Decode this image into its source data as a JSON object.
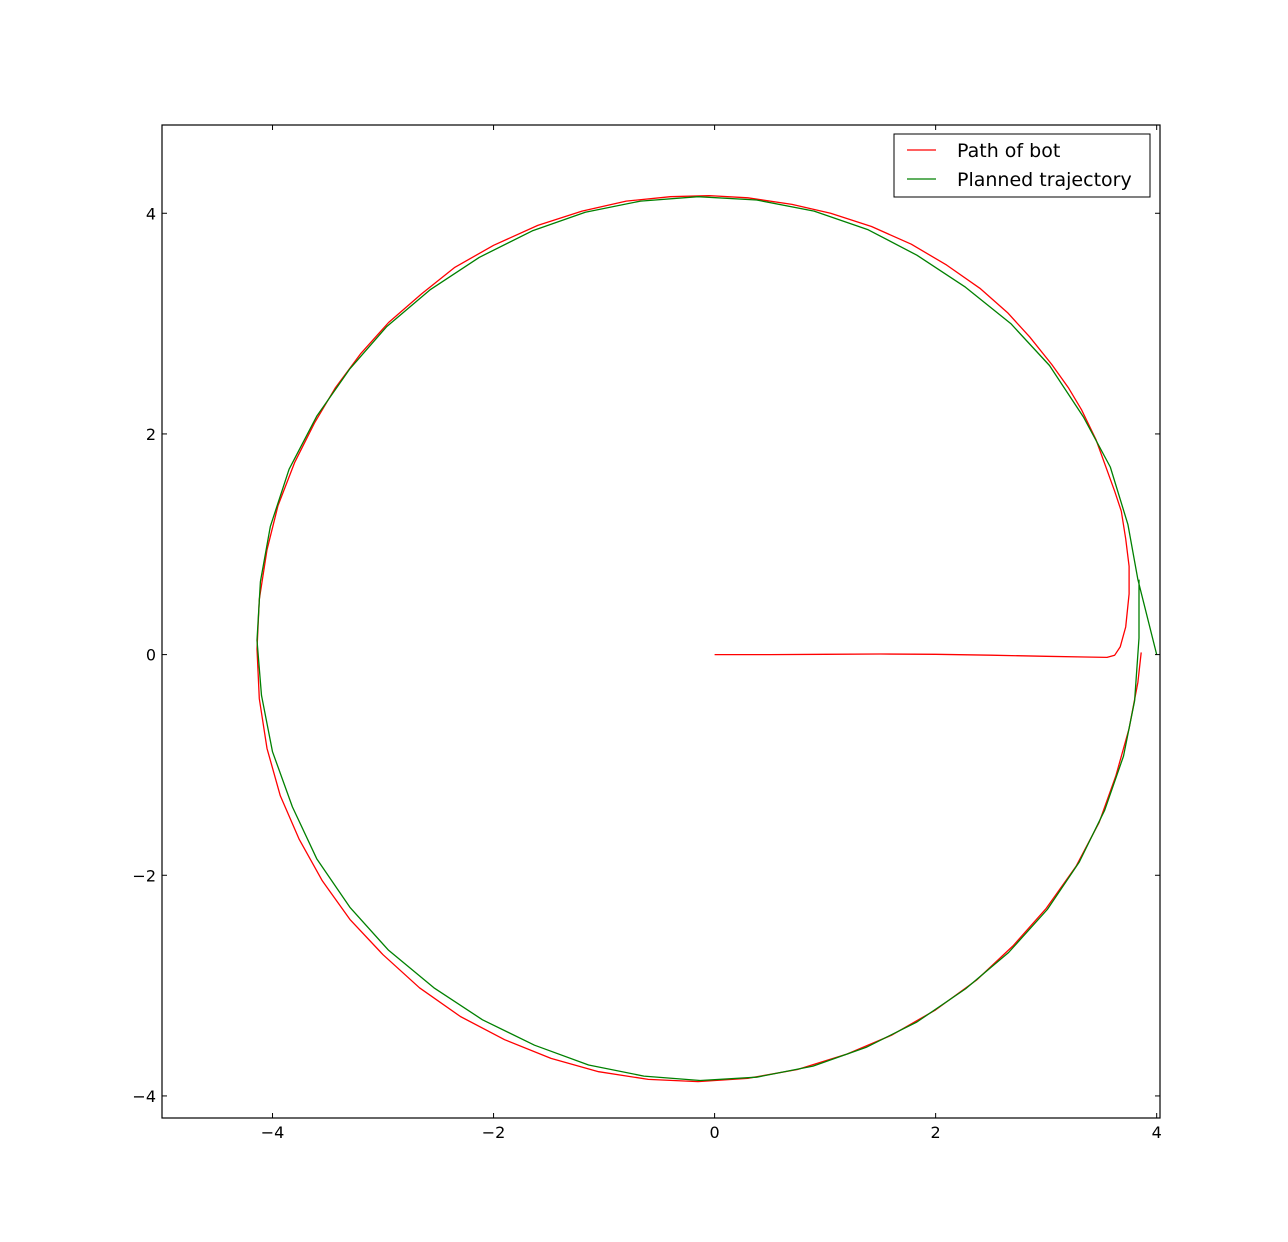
{
  "chart_data": {
    "type": "line",
    "title": "",
    "xlabel": "",
    "ylabel": "",
    "xlim": [
      -5.0,
      4.03
    ],
    "ylim": [
      -4.2,
      4.8
    ],
    "grid": false,
    "legend_position": "top-right",
    "x_ticks": [
      {
        "value": -4,
        "label": "−4"
      },
      {
        "value": -2,
        "label": "−2"
      },
      {
        "value": 0,
        "label": "0"
      },
      {
        "value": 2,
        "label": "2"
      },
      {
        "value": 4,
        "label": "4"
      }
    ],
    "y_ticks": [
      {
        "value": -4,
        "label": "−4"
      },
      {
        "value": -2,
        "label": "−2"
      },
      {
        "value": 0,
        "label": "0"
      },
      {
        "value": 2,
        "label": "2"
      },
      {
        "value": 4,
        "label": "4"
      }
    ],
    "series": [
      {
        "name": "Path of bot",
        "color": "#ff0000",
        "points": [
          [
            0.0,
            0.0
          ],
          [
            0.5,
            0.0
          ],
          [
            1.0,
            0.003
          ],
          [
            1.5,
            0.005
          ],
          [
            2.0,
            0.003
          ],
          [
            2.5,
            -0.005
          ],
          [
            3.0,
            -0.015
          ],
          [
            3.35,
            -0.022
          ],
          [
            3.55,
            -0.025
          ],
          [
            3.62,
            -0.005
          ],
          [
            3.67,
            0.07
          ],
          [
            3.72,
            0.25
          ],
          [
            3.75,
            0.55
          ],
          [
            3.75,
            0.8
          ],
          [
            3.72,
            1.05
          ],
          [
            3.68,
            1.3
          ],
          [
            3.62,
            1.48
          ],
          [
            3.45,
            1.95
          ],
          [
            3.32,
            2.22
          ],
          [
            3.2,
            2.42
          ],
          [
            3.05,
            2.63
          ],
          [
            2.85,
            2.88
          ],
          [
            2.65,
            3.1
          ],
          [
            2.4,
            3.32
          ],
          [
            2.1,
            3.53
          ],
          [
            1.78,
            3.72
          ],
          [
            1.42,
            3.88
          ],
          [
            1.05,
            4.0
          ],
          [
            0.7,
            4.08
          ],
          [
            0.3,
            4.14
          ],
          [
            -0.05,
            4.16
          ],
          [
            -0.4,
            4.15
          ],
          [
            -0.8,
            4.11
          ],
          [
            -1.2,
            4.02
          ],
          [
            -1.6,
            3.89
          ],
          [
            -2.0,
            3.71
          ],
          [
            -2.35,
            3.51
          ],
          [
            -2.65,
            3.27
          ],
          [
            -2.95,
            3.01
          ],
          [
            -3.2,
            2.73
          ],
          [
            -3.43,
            2.42
          ],
          [
            -3.62,
            2.1
          ],
          [
            -3.8,
            1.74
          ],
          [
            -3.95,
            1.35
          ],
          [
            -4.05,
            0.95
          ],
          [
            -4.12,
            0.5
          ],
          [
            -4.14,
            0.05
          ],
          [
            -4.12,
            -0.4
          ],
          [
            -4.05,
            -0.85
          ],
          [
            -3.93,
            -1.28
          ],
          [
            -3.76,
            -1.67
          ],
          [
            -3.55,
            -2.05
          ],
          [
            -3.3,
            -2.4
          ],
          [
            -3.0,
            -2.72
          ],
          [
            -2.67,
            -3.02
          ],
          [
            -2.3,
            -3.28
          ],
          [
            -1.9,
            -3.49
          ],
          [
            -1.48,
            -3.66
          ],
          [
            -1.05,
            -3.78
          ],
          [
            -0.6,
            -3.85
          ],
          [
            -0.15,
            -3.87
          ],
          [
            0.3,
            -3.84
          ],
          [
            0.75,
            -3.76
          ],
          [
            1.2,
            -3.62
          ],
          [
            1.6,
            -3.45
          ],
          [
            2.0,
            -3.22
          ],
          [
            2.37,
            -2.95
          ],
          [
            2.7,
            -2.64
          ],
          [
            3.0,
            -2.3
          ],
          [
            3.27,
            -1.92
          ],
          [
            3.48,
            -1.52
          ],
          [
            3.63,
            -1.1
          ],
          [
            3.75,
            -0.67
          ],
          [
            3.83,
            -0.25
          ],
          [
            3.86,
            0.02
          ]
        ]
      },
      {
        "name": "Planned trajectory",
        "color": "#008000",
        "points": [
          [
            4.0,
            0.0
          ],
          [
            3.83,
            0.68
          ],
          [
            3.74,
            1.18
          ],
          [
            3.58,
            1.7
          ],
          [
            3.34,
            2.15
          ],
          [
            3.03,
            2.62
          ],
          [
            2.68,
            3.0
          ],
          [
            2.27,
            3.33
          ],
          [
            1.83,
            3.62
          ],
          [
            1.39,
            3.85
          ],
          [
            0.9,
            4.02
          ],
          [
            0.38,
            4.12
          ],
          [
            -0.15,
            4.15
          ],
          [
            -0.67,
            4.11
          ],
          [
            -1.17,
            4.01
          ],
          [
            -1.65,
            3.84
          ],
          [
            -2.13,
            3.6
          ],
          [
            -2.57,
            3.31
          ],
          [
            -2.97,
            2.97
          ],
          [
            -3.3,
            2.59
          ],
          [
            -3.6,
            2.16
          ],
          [
            -3.85,
            1.68
          ],
          [
            -4.02,
            1.16
          ],
          [
            -4.11,
            0.66
          ],
          [
            -4.14,
            0.13
          ],
          [
            -4.1,
            -0.37
          ],
          [
            -4.0,
            -0.88
          ],
          [
            -3.82,
            -1.38
          ],
          [
            -3.6,
            -1.85
          ],
          [
            -3.3,
            -2.29
          ],
          [
            -2.95,
            -2.68
          ],
          [
            -2.54,
            -3.02
          ],
          [
            -2.1,
            -3.31
          ],
          [
            -1.63,
            -3.54
          ],
          [
            -1.14,
            -3.72
          ],
          [
            -0.64,
            -3.82
          ],
          [
            -0.13,
            -3.86
          ],
          [
            0.38,
            -3.83
          ],
          [
            0.89,
            -3.73
          ],
          [
            1.37,
            -3.56
          ],
          [
            1.83,
            -3.33
          ],
          [
            2.27,
            -3.03
          ],
          [
            2.66,
            -2.7
          ],
          [
            3.01,
            -2.31
          ],
          [
            3.3,
            -1.88
          ],
          [
            3.53,
            -1.41
          ],
          [
            3.7,
            -0.92
          ],
          [
            3.8,
            -0.42
          ],
          [
            3.84,
            0.15
          ],
          [
            3.84,
            0.68
          ]
        ]
      }
    ]
  }
}
